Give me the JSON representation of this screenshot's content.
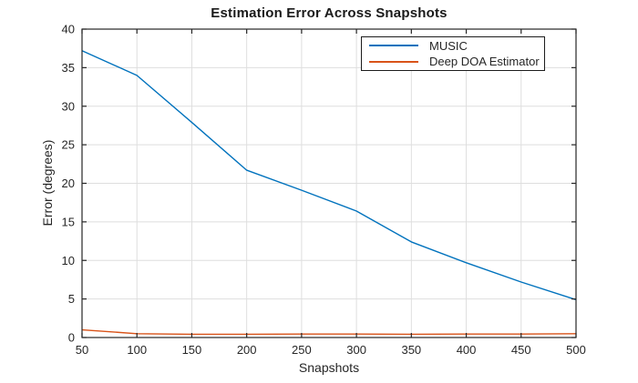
{
  "figure": {
    "background": "#ffffff"
  },
  "styles": {
    "axis_color": "#262626",
    "grid_color": "#dedede",
    "tick_label_color": "#262626",
    "title_color": "#1a1a1a",
    "legend_border_color": "#1c1c1c"
  },
  "chart_data": {
    "type": "line",
    "title": "Estimation Error Across Snapshots",
    "xlabel": "Snapshots",
    "ylabel": "Error (degrees)",
    "x": [
      50,
      100,
      150,
      200,
      250,
      300,
      350,
      400,
      450,
      500
    ],
    "series": [
      {
        "name": "MUSIC",
        "color": "#0072BD",
        "values": [
          37.2,
          34.0,
          27.9,
          21.7,
          19.1,
          16.4,
          12.4,
          9.7,
          7.2,
          4.9
        ]
      },
      {
        "name": "Deep DOA Estimator",
        "color": "#D95319",
        "values": [
          1.0,
          0.5,
          0.42,
          0.42,
          0.45,
          0.45,
          0.42,
          0.45,
          0.45,
          0.5
        ]
      }
    ],
    "xlim": [
      50,
      500
    ],
    "ylim": [
      0,
      40
    ],
    "xticks": [
      50,
      100,
      150,
      200,
      250,
      300,
      350,
      400,
      450,
      500
    ],
    "yticks": [
      0,
      5,
      10,
      15,
      20,
      25,
      30,
      35,
      40
    ],
    "grid": true,
    "legend_position": "inside-top-right",
    "legend_entries": [
      "MUSIC",
      "Deep DOA Estimator"
    ]
  }
}
